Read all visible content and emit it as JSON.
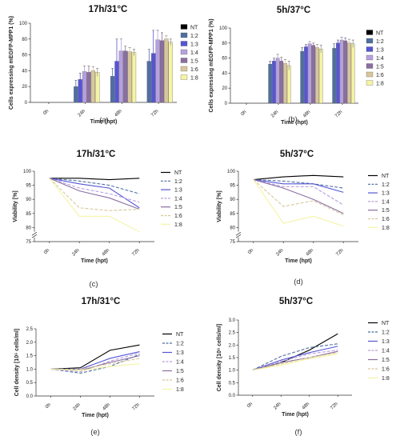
{
  "colors": {
    "NT": "#000000",
    "1:2": "#4f6fa0",
    "1:3": "#5555d6",
    "1:4": "#b7a0df",
    "1:5": "#8a6ea2",
    "1:6": "#d8c79a",
    "1:8": "#f4f4a4"
  },
  "panel_labels": [
    "(a)",
    "(b)",
    "(c)",
    "(d)",
    "(e)",
    "(f)"
  ],
  "chart_data": [
    {
      "id": "a",
      "type": "bar",
      "title": "17h/31°C",
      "xlabel": "Time (hpt)",
      "ylabel": "Cells expressing mEGFP-MPP1 (%)",
      "ylim": [
        0,
        100
      ],
      "yticks": [
        0,
        20,
        40,
        60,
        80,
        100
      ],
      "categories": [
        "0h",
        "24h",
        "48h",
        "72h"
      ],
      "series": [
        {
          "name": "NT",
          "values": [
            0,
            0,
            0,
            0
          ],
          "err": [
            0,
            0,
            0,
            0
          ]
        },
        {
          "name": "1:2",
          "values": [
            0,
            20,
            33,
            52
          ],
          "err": [
            0,
            8,
            10,
            15
          ]
        },
        {
          "name": "1:3",
          "values": [
            0,
            29,
            52,
            62
          ],
          "err": [
            0,
            8,
            28,
            29
          ]
        },
        {
          "name": "1:4",
          "values": [
            0,
            39,
            65,
            79
          ],
          "err": [
            0,
            7,
            15,
            12
          ]
        },
        {
          "name": "1:5",
          "values": [
            0,
            38,
            65,
            78
          ],
          "err": [
            0,
            8,
            6,
            10
          ]
        },
        {
          "name": "1:6",
          "values": [
            0,
            40,
            64,
            80
          ],
          "err": [
            0,
            5,
            5,
            4
          ]
        },
        {
          "name": "1:8",
          "values": [
            0,
            38,
            63,
            76
          ],
          "err": [
            0,
            5,
            4,
            4
          ]
        }
      ]
    },
    {
      "id": "b",
      "type": "bar",
      "title": "5h/37°C",
      "xlabel": "Time (hpt)",
      "ylabel": "Cells expressing mEGFP-MPP1 (%)",
      "ylim": [
        0,
        100
      ],
      "yticks": [
        0,
        20,
        40,
        60,
        80,
        100
      ],
      "categories": [
        "0h",
        "24h",
        "48h",
        "72h"
      ],
      "series": [
        {
          "name": "NT",
          "values": [
            0,
            0,
            0,
            0
          ],
          "err": [
            0,
            0,
            0,
            0
          ]
        },
        {
          "name": "1:2",
          "values": [
            0,
            52,
            69,
            73
          ],
          "err": [
            0,
            4,
            5,
            6
          ]
        },
        {
          "name": "1:3",
          "values": [
            0,
            56,
            75,
            80
          ],
          "err": [
            0,
            4,
            3,
            4
          ]
        },
        {
          "name": "1:4",
          "values": [
            0,
            60,
            79,
            84
          ],
          "err": [
            0,
            5,
            3,
            4
          ]
        },
        {
          "name": "1:5",
          "values": [
            0,
            56,
            77,
            83
          ],
          "err": [
            0,
            5,
            3,
            4
          ]
        },
        {
          "name": "1:6",
          "values": [
            0,
            53,
            74,
            80
          ],
          "err": [
            0,
            5,
            4,
            5
          ]
        },
        {
          "name": "1:8",
          "values": [
            0,
            50,
            72,
            79
          ],
          "err": [
            0,
            6,
            5,
            5
          ]
        }
      ]
    },
    {
      "id": "c",
      "type": "line",
      "title": "17h/31°C",
      "xlabel": "Time (hpt)",
      "ylabel": "Viability [%]",
      "ylim": [
        75,
        100
      ],
      "yticks": [
        75,
        80,
        85,
        90,
        95,
        100
      ],
      "axis_break": true,
      "x": [
        "0h",
        "24h",
        "48h",
        "72h"
      ],
      "series": [
        {
          "name": "NT",
          "values": [
            97.5,
            97.5,
            97.0,
            97.5
          ]
        },
        {
          "name": "1:2",
          "values": [
            97.5,
            96.5,
            95.0,
            92.0
          ]
        },
        {
          "name": "1:3",
          "values": [
            97.5,
            95.5,
            94.0,
            87.0
          ]
        },
        {
          "name": "1:4",
          "values": [
            97.5,
            94.0,
            92.0,
            89.0
          ]
        },
        {
          "name": "1:5",
          "values": [
            97.5,
            93.0,
            90.5,
            86.5
          ]
        },
        {
          "name": "1:6",
          "values": [
            97.5,
            87.0,
            86.0,
            86.5
          ]
        },
        {
          "name": "1:8",
          "values": [
            97.5,
            84.0,
            84.0,
            78.5
          ]
        }
      ]
    },
    {
      "id": "d",
      "type": "line",
      "title": "5h/37°C",
      "xlabel": "Time (hpt)",
      "ylabel": "Viability [%]",
      "ylim": [
        75,
        100
      ],
      "yticks": [
        75,
        80,
        85,
        90,
        95,
        100
      ],
      "axis_break": true,
      "x": [
        "0h",
        "24h",
        "48h",
        "72h"
      ],
      "series": [
        {
          "name": "NT",
          "values": [
            97.0,
            98.0,
            98.5,
            98.0
          ]
        },
        {
          "name": "1:2",
          "values": [
            97.0,
            96.5,
            95.5,
            94.0
          ]
        },
        {
          "name": "1:3",
          "values": [
            97.0,
            95.5,
            95.5,
            92.5
          ]
        },
        {
          "name": "1:4",
          "values": [
            97.0,
            94.5,
            94.5,
            88.0
          ]
        },
        {
          "name": "1:5",
          "values": [
            97.0,
            94.0,
            90.0,
            85.0
          ]
        },
        {
          "name": "1:6",
          "values": [
            97.0,
            87.5,
            89.5,
            84.5
          ]
        },
        {
          "name": "1:8",
          "values": [
            97.0,
            81.5,
            84.0,
            80.5
          ]
        }
      ]
    },
    {
      "id": "e",
      "type": "line",
      "title": "17h/31°C",
      "xlabel": "Time (hpt)",
      "ylabel": "Cell density [10⁶ cells/ml]",
      "ylim": [
        0,
        2.5
      ],
      "yticks": [
        0.0,
        0.5,
        1.0,
        1.5,
        2.0,
        2.5
      ],
      "tick_decimals": 1,
      "x": [
        "0h",
        "24h",
        "48h",
        "72h"
      ],
      "series": [
        {
          "name": "NT",
          "values": [
            1.0,
            1.05,
            1.7,
            1.9
          ]
        },
        {
          "name": "1:2",
          "values": [
            1.0,
            0.85,
            1.1,
            1.55
          ]
        },
        {
          "name": "1:3",
          "values": [
            1.0,
            1.0,
            1.4,
            1.65
          ]
        },
        {
          "name": "1:4",
          "values": [
            1.0,
            0.9,
            1.3,
            1.6
          ]
        },
        {
          "name": "1:5",
          "values": [
            1.0,
            0.95,
            1.25,
            1.5
          ]
        },
        {
          "name": "1:6",
          "values": [
            1.0,
            1.0,
            1.2,
            1.4
          ]
        },
        {
          "name": "1:8",
          "values": [
            1.0,
            0.95,
            1.1,
            1.2
          ]
        }
      ]
    },
    {
      "id": "f",
      "type": "line",
      "title": "5h/37°C",
      "xlabel": "Time (hpt)",
      "ylabel": "Cell density [10⁶ cells/ml]",
      "ylim": [
        0,
        3.0
      ],
      "yticks": [
        0.0,
        0.5,
        1.0,
        1.5,
        2.0,
        2.5,
        3.0
      ],
      "tick_decimals": 1,
      "x": [
        "0h",
        "24h",
        "48h",
        "72h"
      ],
      "series": [
        {
          "name": "NT",
          "values": [
            1.0,
            1.3,
            1.8,
            2.45
          ]
        },
        {
          "name": "1:2",
          "values": [
            1.0,
            1.55,
            1.9,
            2.05
          ]
        },
        {
          "name": "1:3",
          "values": [
            1.0,
            1.4,
            1.7,
            1.95
          ]
        },
        {
          "name": "1:4",
          "values": [
            1.0,
            1.35,
            1.65,
            1.8
          ]
        },
        {
          "name": "1:5",
          "values": [
            1.0,
            1.3,
            1.5,
            1.75
          ]
        },
        {
          "name": "1:6",
          "values": [
            1.0,
            1.25,
            1.5,
            1.7
          ]
        },
        {
          "name": "1:8",
          "values": [
            1.0,
            1.2,
            1.45,
            1.65
          ]
        }
      ]
    }
  ]
}
